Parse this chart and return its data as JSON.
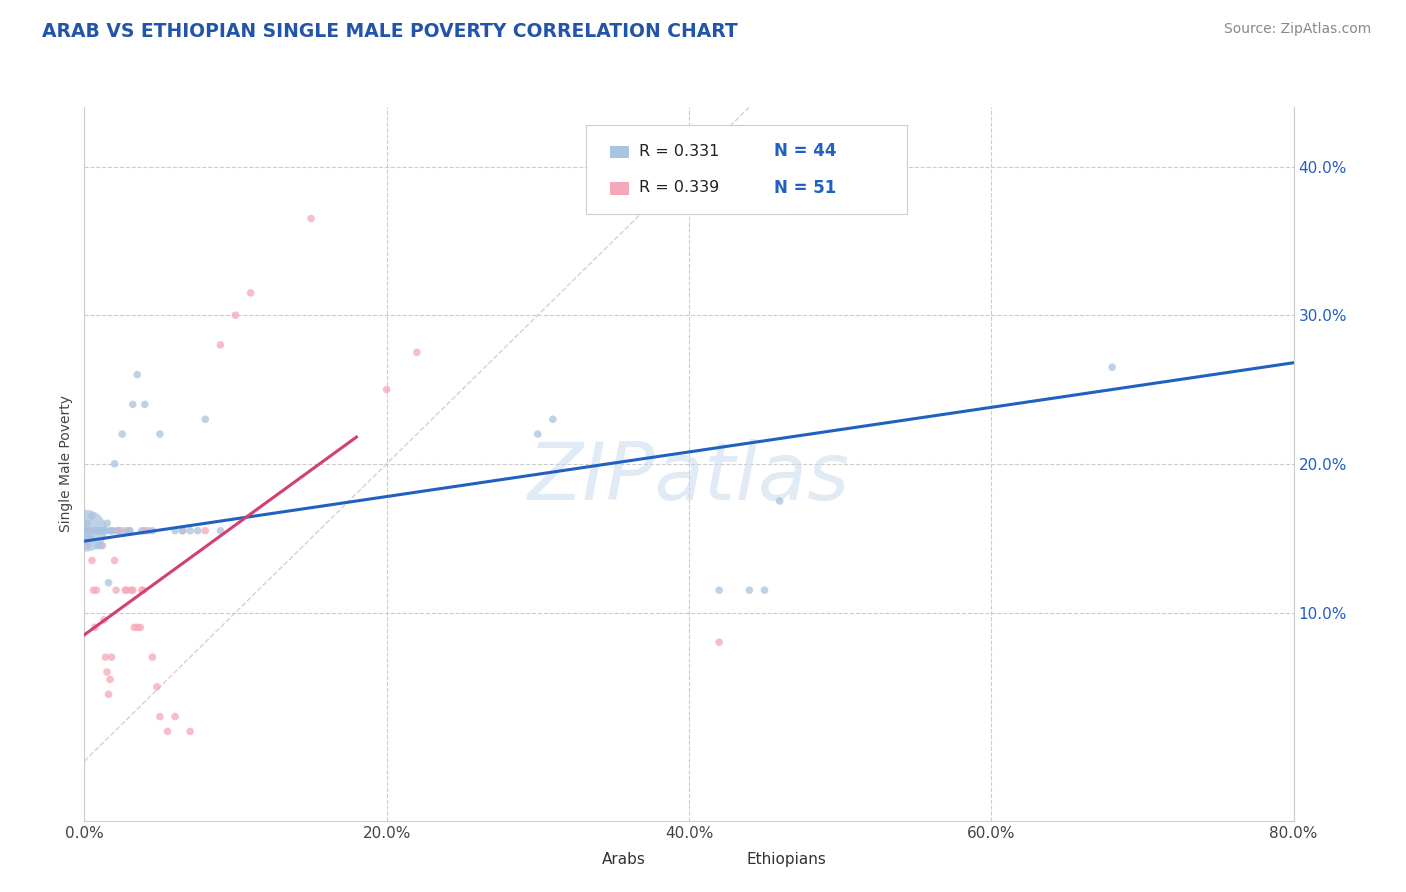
{
  "title": "ARAB VS ETHIOPIAN SINGLE MALE POVERTY CORRELATION CHART",
  "source": "Source: ZipAtlas.com",
  "ylabel": "Single Male Poverty",
  "xlim": [
    0.0,
    0.8
  ],
  "ylim": [
    -0.04,
    0.44
  ],
  "xtick_vals": [
    0.0,
    0.2,
    0.4,
    0.6,
    0.8
  ],
  "ytick_labels": [
    "10.0%",
    "20.0%",
    "30.0%",
    "40.0%"
  ],
  "ytick_vals": [
    0.1,
    0.2,
    0.3,
    0.4
  ],
  "arab_color": "#a8c4e0",
  "ethiopian_color": "#f4a8b8",
  "arab_line_color": "#2060c0",
  "ethiopian_line_color": "#d04070",
  "diag_line_color": "#d0b8c0",
  "watermark": "ZIPatlas",
  "legend_arab_R": "R = 0.331",
  "legend_arab_N": "N = 44",
  "legend_eth_R": "R = 0.339",
  "legend_eth_N": "N = 51",
  "arab_points": [
    [
      0.001,
      0.155
    ],
    [
      0.002,
      0.16
    ],
    [
      0.003,
      0.15
    ],
    [
      0.004,
      0.15
    ],
    [
      0.005,
      0.165
    ],
    [
      0.006,
      0.155
    ],
    [
      0.007,
      0.155
    ],
    [
      0.008,
      0.155
    ],
    [
      0.009,
      0.145
    ],
    [
      0.01,
      0.155
    ],
    [
      0.011,
      0.145
    ],
    [
      0.012,
      0.155
    ],
    [
      0.013,
      0.155
    ],
    [
      0.014,
      0.155
    ],
    [
      0.015,
      0.16
    ],
    [
      0.016,
      0.12
    ],
    [
      0.017,
      0.155
    ],
    [
      0.018,
      0.155
    ],
    [
      0.02,
      0.2
    ],
    [
      0.022,
      0.155
    ],
    [
      0.025,
      0.22
    ],
    [
      0.028,
      0.155
    ],
    [
      0.03,
      0.155
    ],
    [
      0.032,
      0.24
    ],
    [
      0.035,
      0.26
    ],
    [
      0.038,
      0.155
    ],
    [
      0.04,
      0.24
    ],
    [
      0.045,
      0.155
    ],
    [
      0.05,
      0.22
    ],
    [
      0.06,
      0.155
    ],
    [
      0.065,
      0.155
    ],
    [
      0.07,
      0.155
    ],
    [
      0.075,
      0.155
    ],
    [
      0.08,
      0.23
    ],
    [
      0.09,
      0.155
    ],
    [
      0.3,
      0.22
    ],
    [
      0.31,
      0.23
    ],
    [
      0.42,
      0.115
    ],
    [
      0.44,
      0.115
    ],
    [
      0.45,
      0.115
    ],
    [
      0.46,
      0.175
    ],
    [
      0.68,
      0.265
    ],
    [
      0.001,
      0.155
    ],
    [
      0.001,
      0.155
    ]
  ],
  "arab_sizes": [
    900,
    30,
    30,
    30,
    30,
    30,
    30,
    30,
    30,
    30,
    30,
    30,
    30,
    30,
    30,
    30,
    30,
    30,
    30,
    30,
    30,
    30,
    30,
    30,
    30,
    30,
    30,
    30,
    30,
    30,
    30,
    30,
    30,
    30,
    30,
    30,
    30,
    30,
    30,
    30,
    30,
    30,
    30,
    30
  ],
  "ethiopian_points": [
    [
      0.001,
      0.155
    ],
    [
      0.002,
      0.145
    ],
    [
      0.003,
      0.155
    ],
    [
      0.004,
      0.155
    ],
    [
      0.005,
      0.135
    ],
    [
      0.006,
      0.115
    ],
    [
      0.007,
      0.09
    ],
    [
      0.008,
      0.115
    ],
    [
      0.009,
      0.155
    ],
    [
      0.01,
      0.155
    ],
    [
      0.011,
      0.155
    ],
    [
      0.012,
      0.145
    ],
    [
      0.013,
      0.095
    ],
    [
      0.014,
      0.07
    ],
    [
      0.015,
      0.06
    ],
    [
      0.016,
      0.045
    ],
    [
      0.017,
      0.055
    ],
    [
      0.018,
      0.07
    ],
    [
      0.019,
      0.155
    ],
    [
      0.02,
      0.135
    ],
    [
      0.021,
      0.115
    ],
    [
      0.022,
      0.155
    ],
    [
      0.023,
      0.155
    ],
    [
      0.025,
      0.155
    ],
    [
      0.027,
      0.115
    ],
    [
      0.028,
      0.115
    ],
    [
      0.03,
      0.155
    ],
    [
      0.031,
      0.115
    ],
    [
      0.032,
      0.115
    ],
    [
      0.033,
      0.09
    ],
    [
      0.035,
      0.09
    ],
    [
      0.037,
      0.09
    ],
    [
      0.038,
      0.115
    ],
    [
      0.039,
      0.115
    ],
    [
      0.04,
      0.155
    ],
    [
      0.042,
      0.155
    ],
    [
      0.045,
      0.07
    ],
    [
      0.048,
      0.05
    ],
    [
      0.05,
      0.03
    ],
    [
      0.055,
      0.02
    ],
    [
      0.06,
      0.03
    ],
    [
      0.065,
      0.155
    ],
    [
      0.07,
      0.02
    ],
    [
      0.08,
      0.155
    ],
    [
      0.09,
      0.28
    ],
    [
      0.1,
      0.3
    ],
    [
      0.11,
      0.315
    ],
    [
      0.15,
      0.365
    ],
    [
      0.2,
      0.25
    ],
    [
      0.22,
      0.275
    ],
    [
      0.42,
      0.08
    ]
  ],
  "ethiopian_sizes": [
    30,
    30,
    30,
    30,
    30,
    30,
    30,
    30,
    30,
    30,
    30,
    30,
    30,
    30,
    30,
    30,
    30,
    30,
    30,
    30,
    30,
    30,
    30,
    30,
    30,
    30,
    30,
    30,
    30,
    30,
    30,
    30,
    30,
    30,
    30,
    30,
    30,
    30,
    30,
    30,
    30,
    30,
    30,
    30,
    30,
    30,
    30,
    30,
    30,
    30,
    30
  ],
  "background_color": "#ffffff",
  "plot_bg_color": "#ffffff",
  "grid_color": "#cccccc"
}
